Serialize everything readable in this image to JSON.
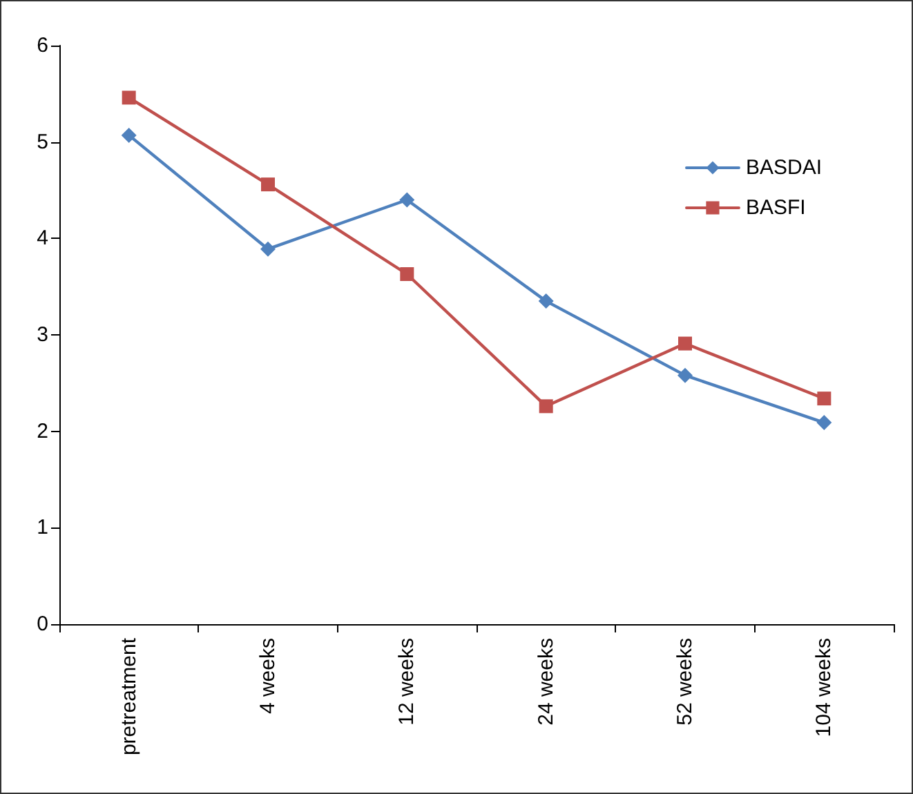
{
  "chart_data": {
    "type": "line",
    "categories": [
      "pretreatment",
      "4 weeks",
      "12 weeks",
      "24 weeks",
      "52 weeks",
      "104 weeks"
    ],
    "series": [
      {
        "name": "BASDAI",
        "color": "#4f81bd",
        "marker": "diamond",
        "values": [
          5.07,
          3.89,
          4.4,
          3.35,
          2.58,
          2.09
        ]
      },
      {
        "name": "BASFI",
        "color": "#c0504d",
        "marker": "square",
        "values": [
          5.46,
          4.56,
          3.63,
          2.26,
          2.91,
          2.34
        ]
      }
    ],
    "ylim": [
      0,
      6
    ],
    "yticks": [
      0,
      1,
      2,
      3,
      4,
      5,
      6
    ],
    "grid": false,
    "legend": "right",
    "line_style": "solid"
  }
}
